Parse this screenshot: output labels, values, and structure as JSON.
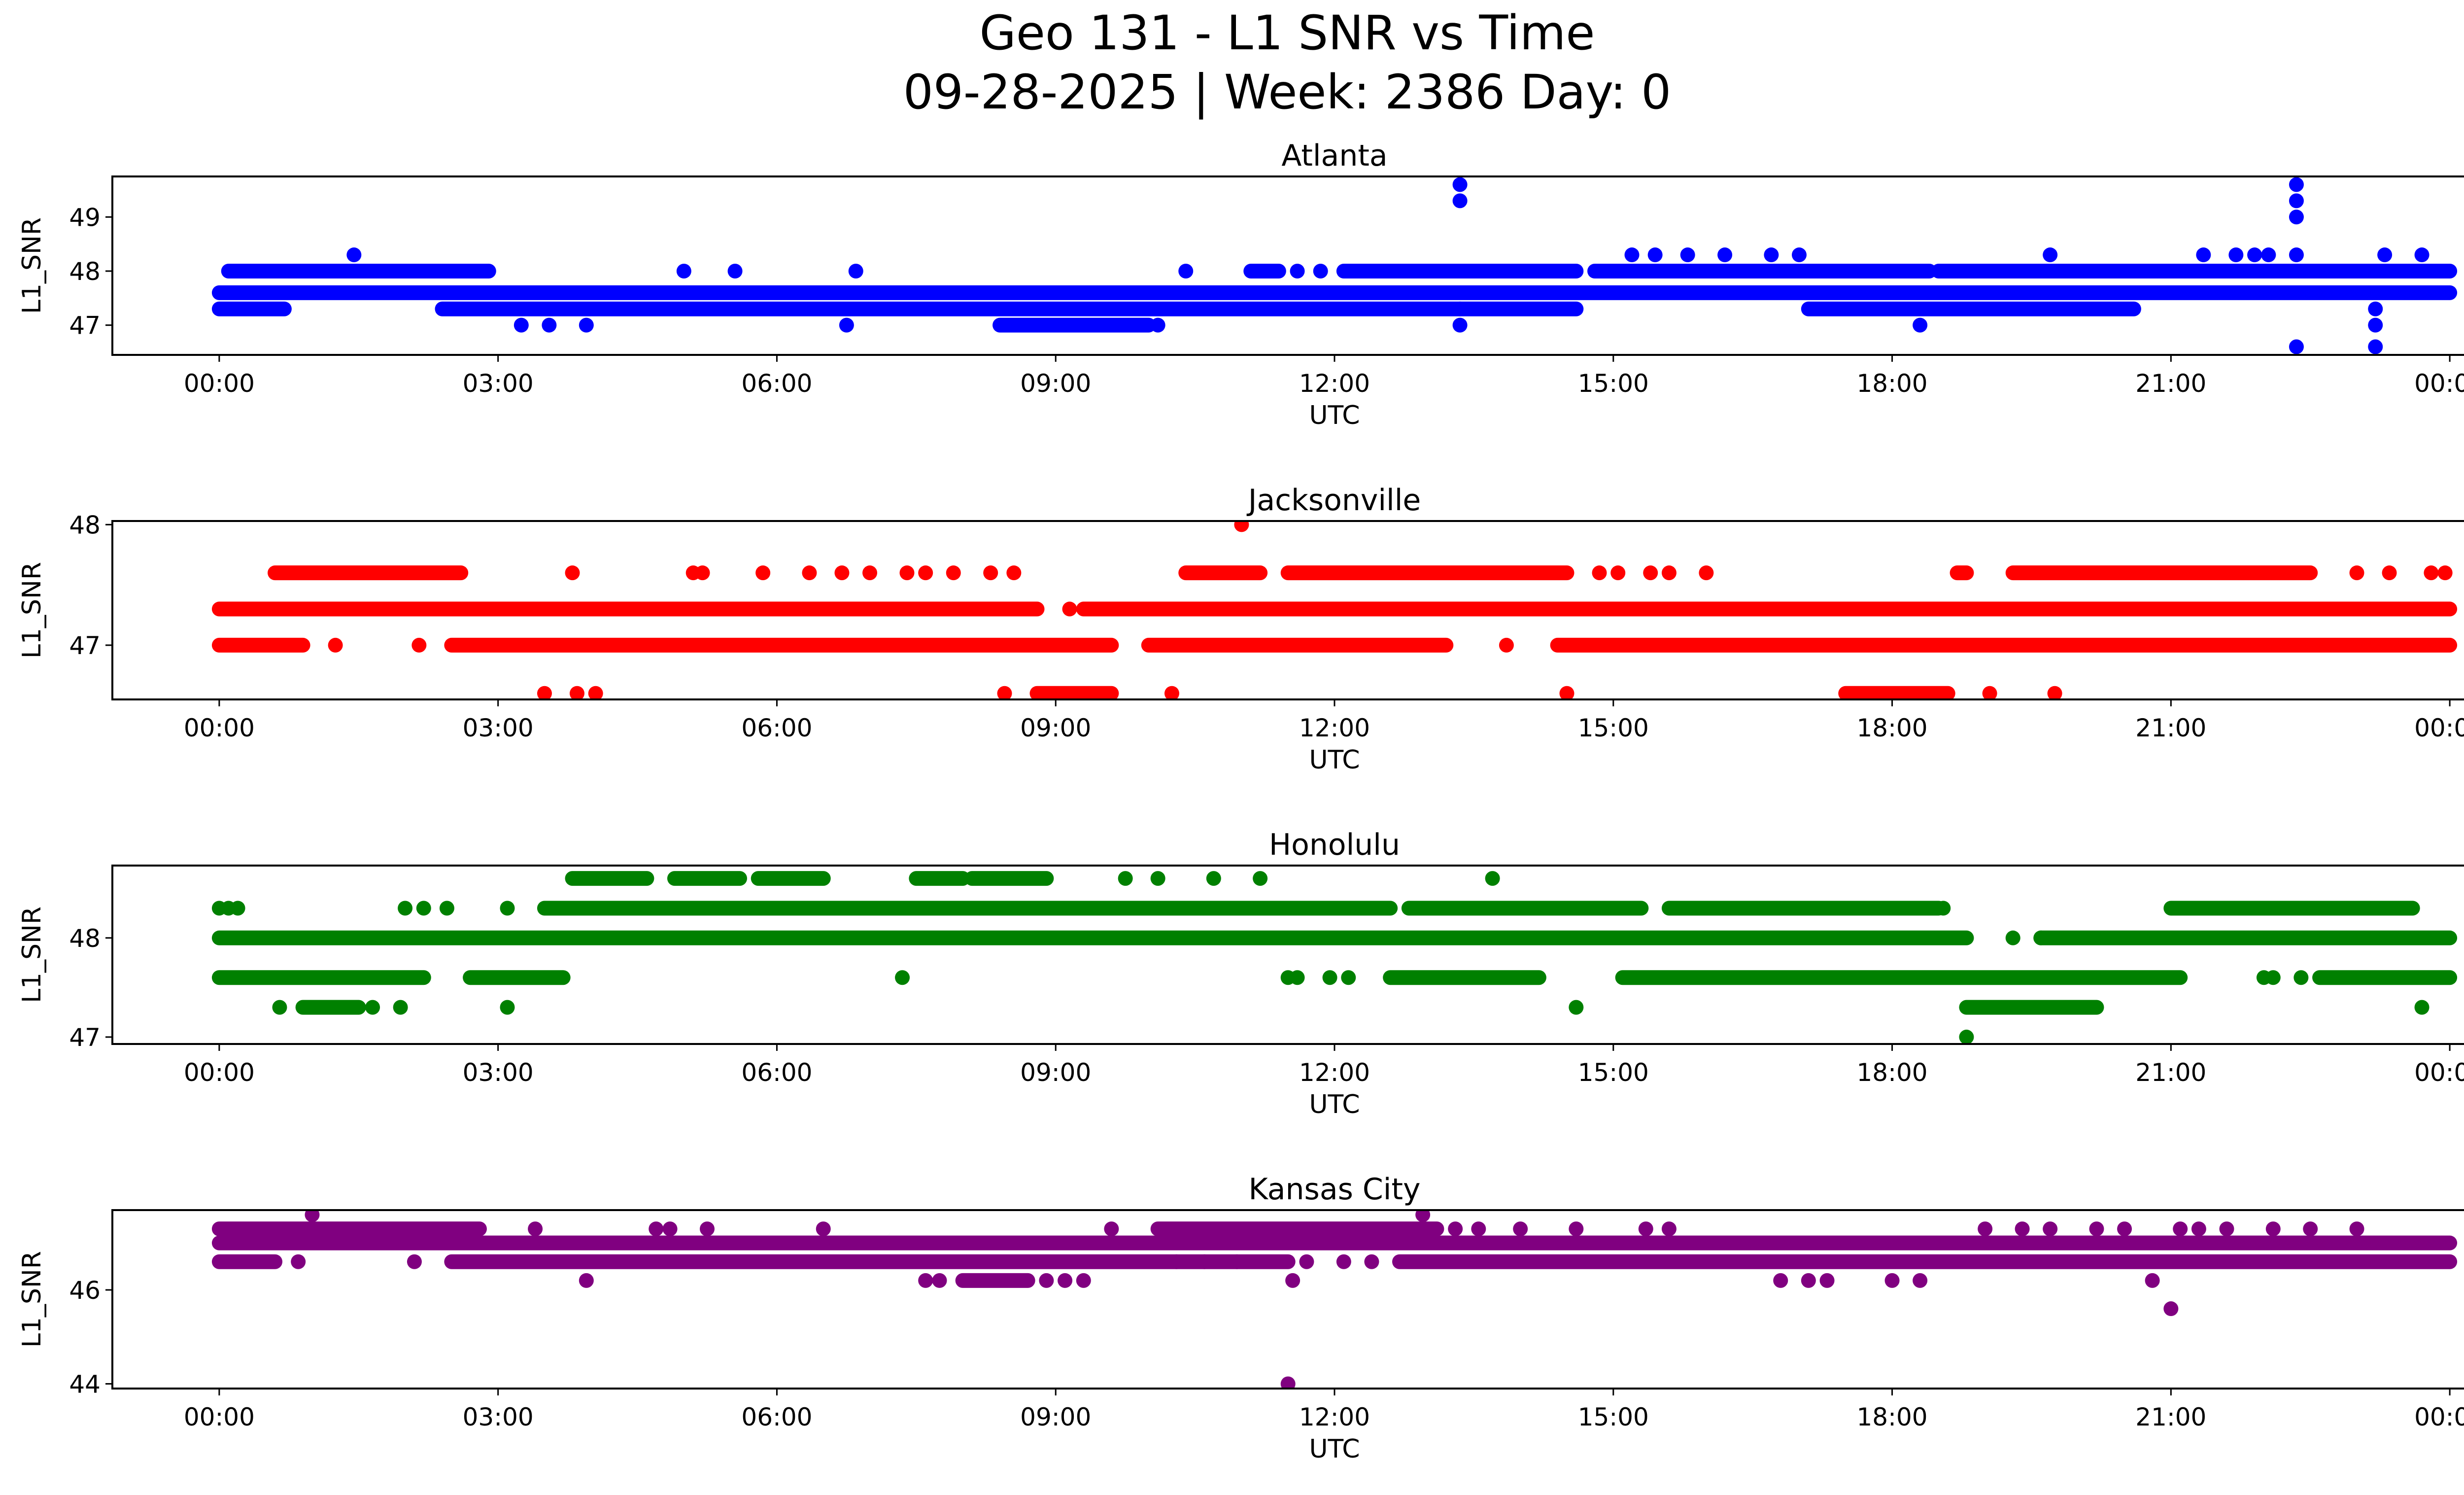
{
  "chart_data": {
    "type": "scatter",
    "title": "Geo 131 - L1 SNR vs Time",
    "subtitle": "09-28-2025 | Week: 2386 Day: 0",
    "xlabel": "UTC",
    "ylabel": "L1_SNR",
    "x_ticks": [
      "00:00",
      "03:00",
      "06:00",
      "09:00",
      "12:00",
      "15:00",
      "18:00",
      "21:00",
      "00:00"
    ],
    "xlim_hours": [
      -1.15,
      25.15
    ],
    "grid": false,
    "panels": [
      {
        "name": "Atlanta",
        "color": "#0000ff",
        "ylim": [
          46.45,
          49.75
        ],
        "yticks": [
          47,
          48,
          49
        ],
        "bands": [
          {
            "y": 47.6,
            "segments": [
              [
                0.0,
                24.0
              ]
            ]
          },
          {
            "y": 47.3,
            "segments": [
              [
                0.0,
                0.7
              ],
              [
                2.4,
                14.6
              ],
              [
                17.1,
                20.6
              ]
            ]
          },
          {
            "y": 48.0,
            "segments": [
              [
                0.1,
                2.9
              ],
              [
                11.1,
                11.4
              ],
              [
                12.1,
                14.6
              ],
              [
                14.8,
                18.4
              ],
              [
                18.5,
                24.0
              ]
            ]
          },
          {
            "y": 47.0,
            "segments": [
              [
                8.4,
                10.0
              ]
            ]
          }
        ],
        "points": [
          [
            1.45,
            48.3
          ],
          [
            3.25,
            47.0
          ],
          [
            3.55,
            47.0
          ],
          [
            3.95,
            47.0
          ],
          [
            5.0,
            48.0
          ],
          [
            5.55,
            48.0
          ],
          [
            6.75,
            47.0
          ],
          [
            6.85,
            48.0
          ],
          [
            10.1,
            47.0
          ],
          [
            10.4,
            48.0
          ],
          [
            11.6,
            48.0
          ],
          [
            11.85,
            48.0
          ],
          [
            13.35,
            49.6
          ],
          [
            13.35,
            49.3
          ],
          [
            13.35,
            47.3
          ],
          [
            13.35,
            47.0
          ],
          [
            15.2,
            48.3
          ],
          [
            15.45,
            48.3
          ],
          [
            15.8,
            48.3
          ],
          [
            16.2,
            48.3
          ],
          [
            16.7,
            48.3
          ],
          [
            17.0,
            48.3
          ],
          [
            18.3,
            47.0
          ],
          [
            19.7,
            48.3
          ],
          [
            21.35,
            48.3
          ],
          [
            21.7,
            48.3
          ],
          [
            21.9,
            48.3
          ],
          [
            22.05,
            48.3
          ],
          [
            22.35,
            49.6
          ],
          [
            22.35,
            49.3
          ],
          [
            22.35,
            49.0
          ],
          [
            22.35,
            48.3
          ],
          [
            22.35,
            46.6
          ],
          [
            23.2,
            47.3
          ],
          [
            23.2,
            47.0
          ],
          [
            23.2,
            46.6
          ],
          [
            23.3,
            48.3
          ],
          [
            23.7,
            48.3
          ]
        ]
      },
      {
        "name": "Jacksonville",
        "color": "#ff0000",
        "ylim": [
          46.55,
          48.03
        ],
        "yticks": [
          47,
          48
        ],
        "bands": [
          {
            "y": 47.3,
            "segments": [
              [
                0.0,
                8.8
              ],
              [
                9.3,
                24.0
              ]
            ]
          },
          {
            "y": 47.0,
            "segments": [
              [
                0.0,
                0.9
              ],
              [
                2.5,
                9.6
              ],
              [
                10.0,
                13.2
              ],
              [
                14.4,
                24.0
              ]
            ]
          },
          {
            "y": 47.6,
            "segments": [
              [
                0.6,
                2.6
              ],
              [
                10.4,
                11.2
              ],
              [
                11.5,
                14.5
              ],
              [
                18.7,
                18.8
              ],
              [
                19.3,
                22.5
              ]
            ]
          },
          {
            "y": 46.6,
            "segments": [
              [
                8.8,
                9.6
              ],
              [
                17.5,
                18.6
              ]
            ]
          }
        ],
        "points": [
          [
            1.25,
            47.0
          ],
          [
            2.15,
            47.0
          ],
          [
            3.5,
            46.6
          ],
          [
            3.8,
            47.6
          ],
          [
            3.85,
            46.6
          ],
          [
            4.05,
            46.6
          ],
          [
            5.1,
            47.6
          ],
          [
            5.2,
            47.6
          ],
          [
            5.85,
            47.6
          ],
          [
            6.35,
            47.6
          ],
          [
            6.7,
            47.6
          ],
          [
            7.0,
            47.6
          ],
          [
            7.4,
            47.6
          ],
          [
            7.6,
            47.6
          ],
          [
            7.9,
            47.6
          ],
          [
            8.3,
            47.6
          ],
          [
            8.45,
            46.6
          ],
          [
            8.55,
            47.6
          ],
          [
            9.15,
            47.3
          ],
          [
            10.25,
            46.6
          ],
          [
            11.0,
            48.0
          ],
          [
            13.85,
            47.0
          ],
          [
            14.5,
            46.6
          ],
          [
            14.85,
            47.6
          ],
          [
            15.05,
            47.6
          ],
          [
            15.4,
            47.6
          ],
          [
            15.6,
            47.6
          ],
          [
            16.0,
            47.6
          ],
          [
            19.05,
            46.6
          ],
          [
            19.75,
            46.6
          ],
          [
            23.0,
            47.6
          ],
          [
            23.35,
            47.6
          ],
          [
            23.8,
            47.6
          ],
          [
            23.95,
            47.6
          ]
        ]
      },
      {
        "name": "Honolulu",
        "color": "#008000",
        "ylim": [
          46.93,
          48.73
        ],
        "yticks": [
          47,
          48
        ],
        "bands": [
          {
            "y": 48.0,
            "segments": [
              [
                0.0,
                18.8
              ],
              [
                19.6,
                24.0
              ]
            ]
          },
          {
            "y": 48.3,
            "segments": [
              [
                3.5,
                12.6
              ],
              [
                12.8,
                15.3
              ],
              [
                15.6,
                18.5
              ],
              [
                21.0,
                23.6
              ]
            ]
          },
          {
            "y": 47.6,
            "segments": [
              [
                0.0,
                2.2
              ],
              [
                2.7,
                3.7
              ],
              [
                12.6,
                14.2
              ],
              [
                15.1,
                21.1
              ],
              [
                22.6,
                24.0
              ]
            ]
          },
          {
            "y": 48.6,
            "segments": [
              [
                3.8,
                4.6
              ],
              [
                4.9,
                5.6
              ],
              [
                5.8,
                6.5
              ],
              [
                7.5,
                8.0
              ],
              [
                8.1,
                8.9
              ]
            ]
          },
          {
            "y": 47.3,
            "segments": [
              [
                0.9,
                1.5
              ],
              [
                18.8,
                20.2
              ]
            ]
          }
        ],
        "points": [
          [
            0.0,
            48.3
          ],
          [
            0.1,
            48.3
          ],
          [
            0.2,
            48.3
          ],
          [
            0.65,
            47.3
          ],
          [
            1.65,
            47.3
          ],
          [
            1.95,
            47.3
          ],
          [
            2.0,
            48.3
          ],
          [
            2.2,
            48.3
          ],
          [
            2.45,
            48.3
          ],
          [
            3.1,
            47.3
          ],
          [
            3.1,
            48.3
          ],
          [
            7.35,
            47.6
          ],
          [
            9.75,
            48.6
          ],
          [
            10.1,
            48.6
          ],
          [
            10.7,
            48.6
          ],
          [
            11.2,
            48.6
          ],
          [
            11.5,
            47.6
          ],
          [
            11.6,
            47.6
          ],
          [
            11.95,
            47.6
          ],
          [
            12.15,
            47.6
          ],
          [
            13.7,
            48.6
          ],
          [
            14.6,
            47.3
          ],
          [
            18.55,
            48.3
          ],
          [
            18.8,
            47.0
          ],
          [
            19.3,
            48.0
          ],
          [
            19.6,
            48.0
          ],
          [
            22.0,
            47.6
          ],
          [
            22.1,
            47.6
          ],
          [
            22.4,
            47.6
          ],
          [
            23.7,
            47.3
          ]
        ]
      },
      {
        "name": "Kansas City",
        "color": "#800080",
        "ylim": [
          43.9,
          47.7
        ],
        "yticks": [
          44,
          46
        ],
        "bands": [
          {
            "y": 47.0,
            "segments": [
              [
                0.0,
                24.0
              ]
            ]
          },
          {
            "y": 46.6,
            "segments": [
              [
                0.0,
                0.6
              ],
              [
                2.5,
                11.5
              ],
              [
                12.7,
                24.0
              ]
            ]
          },
          {
            "y": 47.3,
            "segments": [
              [
                0.0,
                2.8
              ],
              [
                10.1,
                13.1
              ]
            ]
          },
          {
            "y": 46.2,
            "segments": [
              [
                8.0,
                8.7
              ]
            ]
          }
        ],
        "points": [
          [
            1.0,
            47.6
          ],
          [
            0.85,
            46.6
          ],
          [
            2.1,
            46.6
          ],
          [
            3.4,
            47.3
          ],
          [
            3.95,
            46.2
          ],
          [
            4.7,
            47.3
          ],
          [
            4.85,
            47.3
          ],
          [
            5.25,
            47.3
          ],
          [
            6.5,
            47.3
          ],
          [
            7.6,
            46.2
          ],
          [
            7.75,
            46.2
          ],
          [
            8.9,
            46.2
          ],
          [
            9.1,
            46.2
          ],
          [
            9.6,
            47.3
          ],
          [
            9.3,
            46.2
          ],
          [
            10.3,
            46.6
          ],
          [
            10.6,
            46.6
          ],
          [
            10.95,
            46.6
          ],
          [
            11.5,
            44.0
          ],
          [
            11.55,
            46.2
          ],
          [
            11.7,
            46.6
          ],
          [
            12.1,
            46.6
          ],
          [
            12.4,
            46.6
          ],
          [
            12.95,
            47.6
          ],
          [
            13.3,
            47.3
          ],
          [
            13.55,
            47.3
          ],
          [
            14.0,
            47.3
          ],
          [
            14.6,
            47.3
          ],
          [
            15.35,
            47.3
          ],
          [
            15.6,
            47.3
          ],
          [
            16.8,
            46.2
          ],
          [
            17.1,
            46.2
          ],
          [
            17.3,
            46.2
          ],
          [
            18.0,
            46.2
          ],
          [
            18.3,
            46.2
          ],
          [
            19.0,
            47.3
          ],
          [
            19.4,
            47.3
          ],
          [
            19.7,
            47.3
          ],
          [
            20.2,
            47.3
          ],
          [
            20.5,
            47.3
          ],
          [
            20.8,
            46.2
          ],
          [
            21.0,
            45.6
          ],
          [
            21.1,
            47.3
          ],
          [
            21.3,
            47.3
          ],
          [
            21.6,
            47.3
          ],
          [
            22.1,
            47.3
          ],
          [
            22.5,
            47.3
          ],
          [
            23.0,
            47.3
          ]
        ]
      }
    ]
  }
}
